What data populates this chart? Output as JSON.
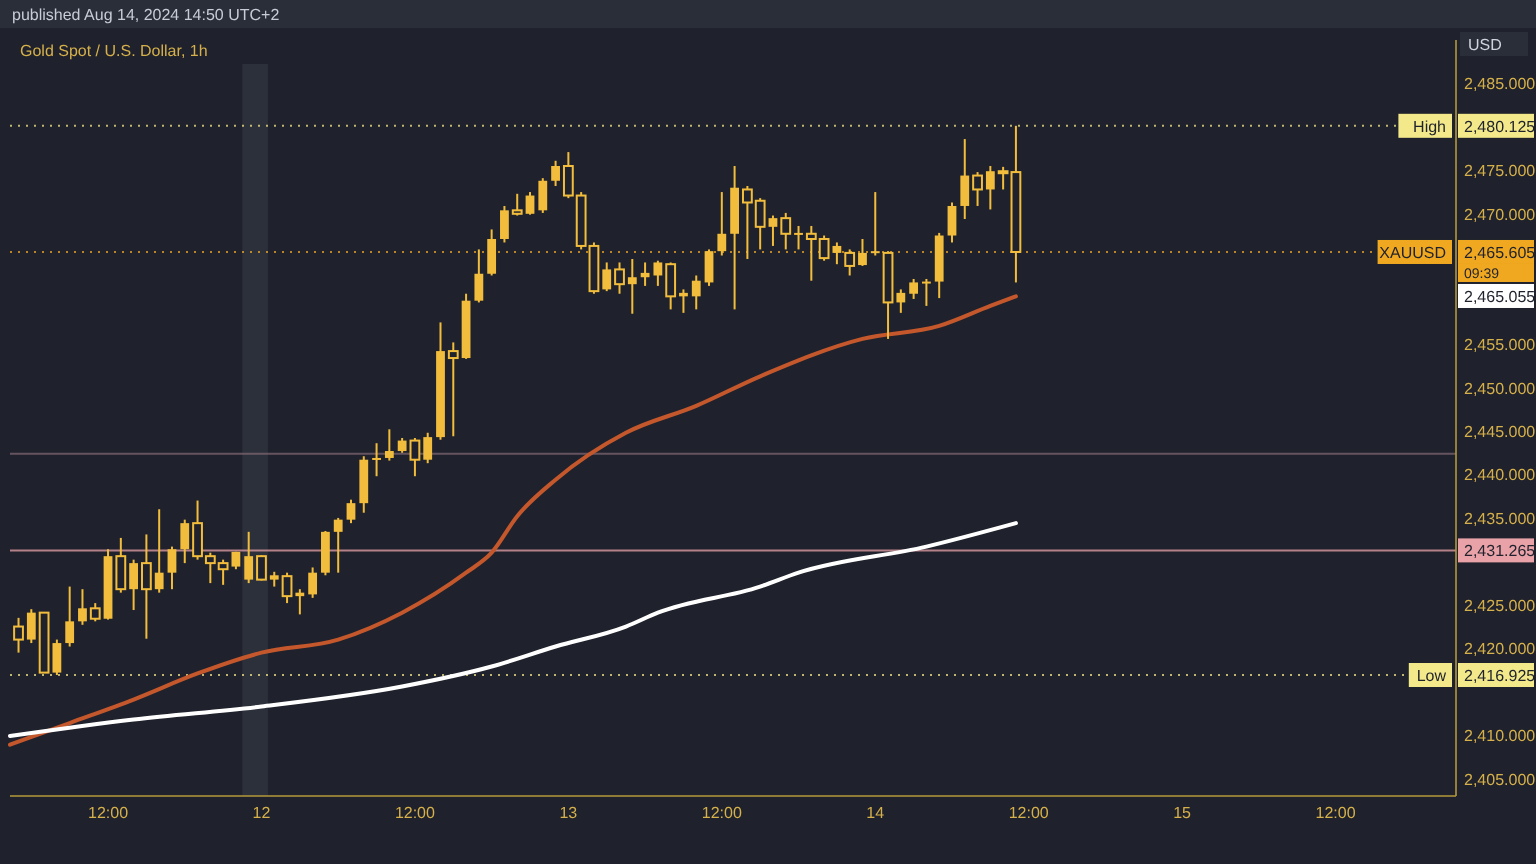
{
  "chart_data": {
    "type": "candlestick",
    "title": "Gold Spot / U.S. Dollar, 1h",
    "ylabel": "USD",
    "annotations": [
      "published Aug 14, 2024 14:50 UTC+2",
      "09:39",
      "2,465.055"
    ],
    "xlim": [
      "2024-08-11T04:20",
      "2024-08-15T21:25"
    ],
    "xticks": [
      {
        "value": "2024-08-11T12:00",
        "label": "12:00"
      },
      {
        "value": "2024-08-12T00:00",
        "label": "12"
      },
      {
        "value": "2024-08-12T12:00",
        "label": "12:00"
      },
      {
        "value": "2024-08-13T00:00",
        "label": "13"
      },
      {
        "value": "2024-08-13T12:00",
        "label": "12:00"
      },
      {
        "value": "2024-08-14T00:00",
        "label": "14"
      },
      {
        "value": "2024-08-14T12:00",
        "label": "12:00"
      },
      {
        "value": "2024-08-15T00:00",
        "label": "15"
      },
      {
        "value": "2024-08-15T12:00",
        "label": "12:00"
      }
    ],
    "ylim": [
      2403,
      2490
    ],
    "yticks": [
      {
        "value": 2405,
        "label": "2,405.000"
      },
      {
        "value": 2410,
        "label": "2,410.000"
      },
      {
        "value": 2420,
        "label": "2,420.000"
      },
      {
        "value": 2425,
        "label": "2,425.000"
      },
      {
        "value": 2435,
        "label": "2,435.000"
      },
      {
        "value": 2440,
        "label": "2,440.000"
      },
      {
        "value": 2445,
        "label": "2,445.000"
      },
      {
        "value": 2450,
        "label": "2,450.000"
      },
      {
        "value": 2455,
        "label": "2,455.000"
      },
      {
        "value": 2470,
        "label": "2,470.000"
      },
      {
        "value": 2475,
        "label": "2,475.000"
      },
      {
        "value": 2485,
        "label": "2,485.000"
      },
      {
        "value": 2480.125,
        "label": "2,480.125"
      },
      {
        "value": 2465.605,
        "label": "2,465.605"
      },
      {
        "value": 2431.265,
        "label": "2,431.265"
      },
      {
        "value": 2416.925,
        "label": "2,416.925"
      }
    ],
    "bands": [
      {
        "axis": "x",
        "from": "2024-08-11T22:30",
        "to": "2024-08-12T00:30",
        "color": "#2c303b"
      }
    ],
    "ref_lines": [
      {
        "axis": "y",
        "value": 2480.125,
        "label": "High",
        "color": "#f3e98a",
        "line_style": "dotted"
      },
      {
        "axis": "y",
        "value": 2465.605,
        "label": "XAUUSD",
        "color": "#f0a820",
        "line_style": "dotted"
      },
      {
        "axis": "y",
        "value": 2431.265,
        "label": null,
        "color": "#e8a2a8",
        "line_style": "solid"
      },
      {
        "axis": "y",
        "value": 2442.4,
        "label": null,
        "color": "#7d6670",
        "line_style": "solid"
      },
      {
        "axis": "y",
        "value": 2416.925,
        "label": "Low",
        "color": "#f3e98a",
        "line_style": "dotted"
      }
    ],
    "series": [
      {
        "type": "line",
        "color": "#c4582c",
        "x": [
          "2024-08-11T04:20",
          "2024-08-11T09:00",
          "2024-08-11T14:00",
          "2024-08-11T19:00",
          "2024-08-12T00:00",
          "2024-08-12T06:00",
          "2024-08-12T11:00",
          "2024-08-12T16:00",
          "2024-08-12T18:00",
          "2024-08-12T20:00",
          "2024-08-12T23:00",
          "2024-08-13T04:30",
          "2024-08-13T10:00",
          "2024-08-13T15:00",
          "2024-08-13T23:00",
          "2024-08-14T05:00",
          "2024-08-14T09:00",
          "2024-08-14T11:00"
        ],
        "values": [
          2408.9,
          2411.4,
          2414.1,
          2417.1,
          2419.5,
          2421.0,
          2424.1,
          2428.7,
          2431.0,
          2435.2,
          2439.4,
          2444.8,
          2447.9,
          2451.3,
          2455.6,
          2457.1,
          2459.4,
          2460.5
        ]
      },
      {
        "type": "line",
        "color": "#ffffff",
        "x": [
          "2024-08-11T04:20",
          "2024-08-11T14:00",
          "2024-08-12T00:00",
          "2024-08-12T11:00",
          "2024-08-12T18:00",
          "2024-08-12T23:00",
          "2024-08-13T04:30",
          "2024-08-13T07:00",
          "2024-08-13T15:00",
          "2024-08-13T18:00",
          "2024-08-14T04:00",
          "2024-08-14T11:00"
        ],
        "values": [
          2409.9,
          2411.8,
          2413.3,
          2415.6,
          2417.9,
          2420.2,
          2422.5,
          2424.1,
          2427.1,
          2428.7,
          2431.7,
          2434.4
        ]
      },
      {
        "color": "#f2bd3c",
        "x": [
          "2024-08-11T05:00",
          "2024-08-11T06:00",
          "2024-08-11T07:00",
          "2024-08-11T08:00",
          "2024-08-11T09:00",
          "2024-08-11T10:00",
          "2024-08-11T11:00",
          "2024-08-11T12:00",
          "2024-08-11T13:00",
          "2024-08-11T14:00",
          "2024-08-11T15:00",
          "2024-08-11T16:00",
          "2024-08-11T17:00",
          "2024-08-11T18:00",
          "2024-08-11T19:00",
          "2024-08-11T20:00",
          "2024-08-11T21:00",
          "2024-08-11T22:00",
          "2024-08-11T23:00",
          "2024-08-12T00:00",
          "2024-08-12T01:00",
          "2024-08-12T02:00",
          "2024-08-12T03:00",
          "2024-08-12T04:00",
          "2024-08-12T05:00",
          "2024-08-12T06:00",
          "2024-08-12T07:00",
          "2024-08-12T08:00",
          "2024-08-12T09:00",
          "2024-08-12T10:00",
          "2024-08-12T11:00",
          "2024-08-12T12:00",
          "2024-08-12T13:00",
          "2024-08-12T14:00",
          "2024-08-12T15:00",
          "2024-08-12T16:00",
          "2024-08-12T17:00",
          "2024-08-12T18:00",
          "2024-08-12T19:00",
          "2024-08-12T20:00",
          "2024-08-12T21:00",
          "2024-08-12T22:00",
          "2024-08-12T23:00",
          "2024-08-13T00:00",
          "2024-08-13T01:00",
          "2024-08-13T02:00",
          "2024-08-13T03:00",
          "2024-08-13T04:00",
          "2024-08-13T05:00",
          "2024-08-13T06:00",
          "2024-08-13T07:00",
          "2024-08-13T08:00",
          "2024-08-13T09:00",
          "2024-08-13T10:00",
          "2024-08-13T11:00",
          "2024-08-13T12:00",
          "2024-08-13T13:00",
          "2024-08-13T14:00",
          "2024-08-13T15:00",
          "2024-08-13T16:00",
          "2024-08-13T17:00",
          "2024-08-13T18:00",
          "2024-08-13T19:00",
          "2024-08-13T20:00",
          "2024-08-13T21:00",
          "2024-08-13T22:00",
          "2024-08-13T23:00",
          "2024-08-14T00:00",
          "2024-08-14T01:00",
          "2024-08-14T02:00",
          "2024-08-14T03:00",
          "2024-08-14T04:00",
          "2024-08-14T05:00",
          "2024-08-14T06:00",
          "2024-08-14T07:00",
          "2024-08-14T08:00",
          "2024-08-14T09:00",
          "2024-08-14T10:00",
          "2024-08-14T11:00"
        ],
        "ohlc": [
          [
            2422.5,
            2423.5,
            2419.5,
            2421.0
          ],
          [
            2421.0,
            2424.5,
            2420.6,
            2424.1
          ],
          [
            2424.1,
            2424.1,
            2417.2,
            2417.2
          ],
          [
            2417.2,
            2421.0,
            2416.925,
            2420.6
          ],
          [
            2420.6,
            2427.1,
            2420.2,
            2423.1
          ],
          [
            2423.1,
            2426.8,
            2422.7,
            2424.6
          ],
          [
            2424.6,
            2425.2,
            2423.1,
            2423.4
          ],
          [
            2423.4,
            2431.4,
            2423.3,
            2430.6
          ],
          [
            2430.6,
            2432.7,
            2426.4,
            2426.8
          ],
          [
            2426.8,
            2430.2,
            2424.4,
            2429.8
          ],
          [
            2429.8,
            2433.1,
            2421.1,
            2426.8
          ],
          [
            2426.8,
            2436.0,
            2426.4,
            2428.7
          ],
          [
            2428.7,
            2431.7,
            2426.8,
            2431.4
          ],
          [
            2431.4,
            2434.8,
            2429.8,
            2434.4
          ],
          [
            2434.4,
            2437.0,
            2430.2,
            2430.6
          ],
          [
            2430.6,
            2431.0,
            2427.5,
            2429.8
          ],
          [
            2429.8,
            2430.2,
            2427.3,
            2429.1
          ],
          [
            2429.4,
            2431.1,
            2429.1,
            2431.1
          ],
          [
            2427.9,
            2433.4,
            2427.5,
            2430.6
          ],
          [
            2430.6,
            2430.7,
            2427.8,
            2427.9
          ],
          [
            2427.9,
            2428.8,
            2427.1,
            2428.4
          ],
          [
            2428.3,
            2428.7,
            2425.2,
            2426.0
          ],
          [
            2426.0,
            2426.8,
            2423.9,
            2426.4
          ],
          [
            2426.2,
            2429.3,
            2425.8,
            2428.7
          ],
          [
            2428.7,
            2433.5,
            2428.4,
            2433.4
          ],
          [
            2433.4,
            2435.0,
            2428.7,
            2434.8
          ],
          [
            2434.8,
            2437.1,
            2434.4,
            2436.7
          ],
          [
            2436.7,
            2442.1,
            2435.6,
            2441.7
          ],
          [
            2441.7,
            2443.6,
            2439.8,
            2441.9
          ],
          [
            2441.9,
            2445.2,
            2441.6,
            2442.7
          ],
          [
            2442.7,
            2444.2,
            2442.5,
            2443.9
          ],
          [
            2443.9,
            2444.2,
            2439.8,
            2441.7
          ],
          [
            2441.7,
            2444.8,
            2441.3,
            2444.3
          ],
          [
            2444.3,
            2457.5,
            2444.0,
            2454.2
          ],
          [
            2454.2,
            2455.2,
            2444.4,
            2453.4
          ],
          [
            2453.4,
            2460.8,
            2453.3,
            2460.0
          ],
          [
            2460.0,
            2465.9,
            2459.8,
            2463.1
          ],
          [
            2463.1,
            2468.2,
            2462.9,
            2467.1
          ],
          [
            2467.1,
            2470.9,
            2466.7,
            2470.4
          ],
          [
            2470.4,
            2472.3,
            2469.8,
            2470.0
          ],
          [
            2470.0,
            2472.5,
            2469.9,
            2472.1
          ],
          [
            2470.4,
            2474.1,
            2470.1,
            2473.8
          ],
          [
            2473.8,
            2476.1,
            2473.2,
            2475.5
          ],
          [
            2475.5,
            2477.1,
            2471.8,
            2472.1
          ],
          [
            2472.1,
            2472.5,
            2465.9,
            2466.3
          ],
          [
            2466.3,
            2466.7,
            2460.8,
            2461.1
          ],
          [
            2461.3,
            2464.4,
            2461.1,
            2463.6
          ],
          [
            2463.6,
            2464.4,
            2460.8,
            2461.9
          ],
          [
            2461.9,
            2464.8,
            2458.5,
            2462.7
          ],
          [
            2462.7,
            2464.4,
            2461.7,
            2463.2
          ],
          [
            2462.9,
            2464.6,
            2461.7,
            2464.4
          ],
          [
            2464.2,
            2464.4,
            2459.0,
            2460.5
          ],
          [
            2460.5,
            2461.3,
            2458.6,
            2460.9
          ],
          [
            2460.5,
            2462.9,
            2459.0,
            2462.3
          ],
          [
            2462.1,
            2465.9,
            2461.7,
            2465.7
          ],
          [
            2465.7,
            2472.5,
            2465.2,
            2467.7
          ],
          [
            2467.7,
            2475.5,
            2459.0,
            2473.0
          ],
          [
            2472.8,
            2473.2,
            2464.8,
            2471.3
          ],
          [
            2471.5,
            2471.8,
            2465.9,
            2468.5
          ],
          [
            2468.5,
            2469.8,
            2466.3,
            2469.5
          ],
          [
            2469.5,
            2470.1,
            2465.9,
            2467.7
          ],
          [
            2467.7,
            2468.6,
            2465.9,
            2467.8
          ],
          [
            2467.7,
            2468.6,
            2462.3,
            2467.1
          ],
          [
            2467.1,
            2467.5,
            2464.6,
            2464.9
          ],
          [
            2465.5,
            2466.7,
            2464.2,
            2466.3
          ],
          [
            2465.5,
            2465.9,
            2462.9,
            2464.0
          ],
          [
            2464.1,
            2467.1,
            2464.0,
            2465.5
          ],
          [
            2465.5,
            2472.5,
            2465.2,
            2465.7
          ],
          [
            2465.5,
            2465.7,
            2455.6,
            2459.8
          ],
          [
            2459.8,
            2461.3,
            2458.6,
            2460.9
          ],
          [
            2460.8,
            2462.5,
            2460.2,
            2462.1
          ],
          [
            2462.1,
            2462.5,
            2459.4,
            2462.2
          ],
          [
            2462.2,
            2467.8,
            2460.3,
            2467.5
          ],
          [
            2467.5,
            2471.3,
            2466.7,
            2470.9
          ],
          [
            2470.9,
            2478.6,
            2469.4,
            2474.4
          ],
          [
            2474.4,
            2474.8,
            2470.9,
            2472.8
          ],
          [
            2472.8,
            2475.5,
            2470.5,
            2474.9
          ],
          [
            2474.9,
            2475.4,
            2472.8,
            2474.8
          ],
          [
            2474.8,
            2480.125,
            2462.1,
            2465.605
          ]
        ]
      }
    ]
  }
}
